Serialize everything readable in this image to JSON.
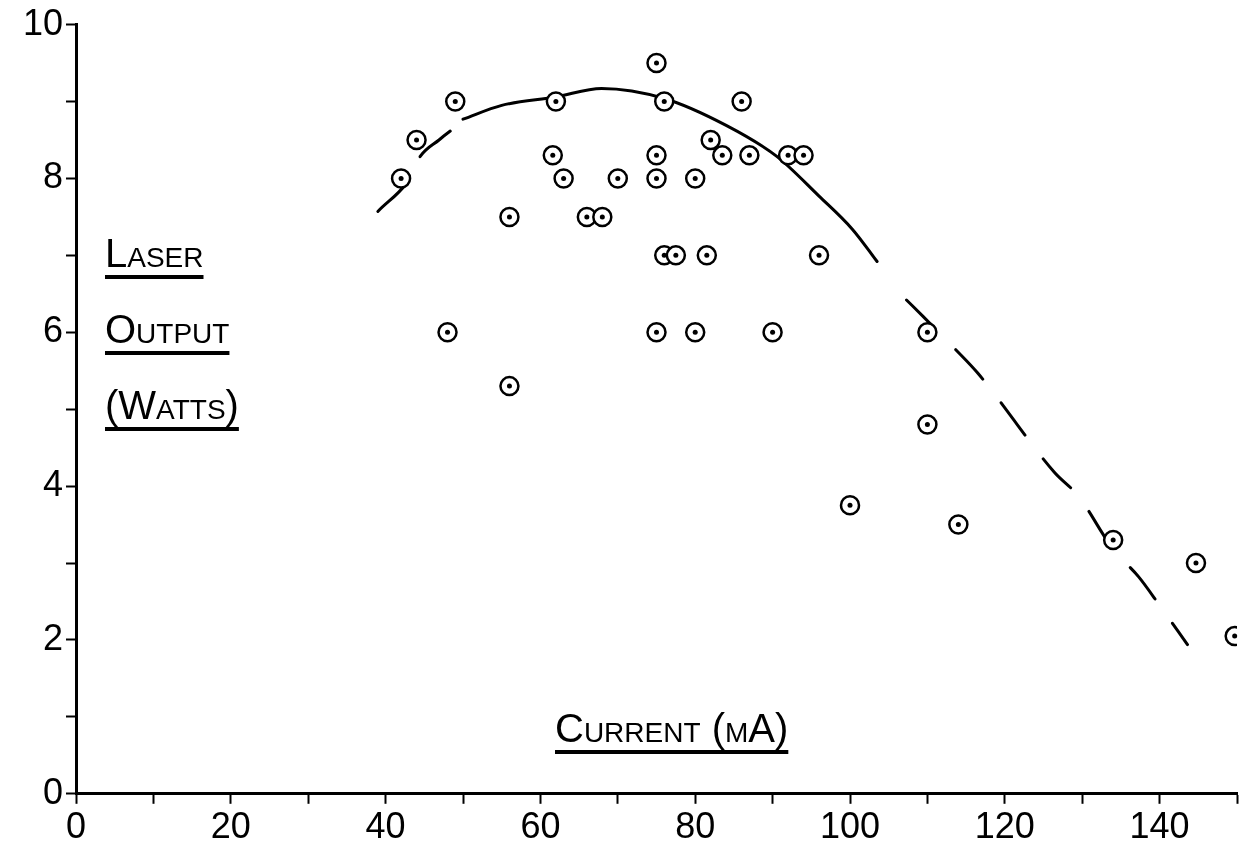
{
  "chart_data": {
    "type": "scatter",
    "xlabel": "Current (mA)",
    "ylabel": "Laser Output (Watts)",
    "xlim": [
      0,
      150
    ],
    "ylim": [
      0,
      10
    ],
    "xticks": [
      0,
      {
        "value": 10,
        "label": null
      },
      20,
      {
        "value": 30,
        "label": null
      },
      40,
      {
        "value": 50,
        "label": null
      },
      60,
      {
        "value": 70,
        "label": null
      },
      80,
      {
        "value": 90,
        "label": null
      },
      100,
      {
        "value": 110,
        "label": null
      },
      120,
      {
        "value": 130,
        "label": null
      },
      140,
      {
        "value": 150,
        "label": null
      }
    ],
    "yticks": [
      0,
      {
        "value": 1,
        "label": null
      },
      2,
      {
        "value": 3,
        "label": null
      },
      4,
      {
        "value": 5,
        "label": null
      },
      6,
      {
        "value": 7,
        "label": null
      },
      8,
      {
        "value": 9,
        "label": null
      },
      10
    ],
    "grid": false,
    "legend": false,
    "marker": "circle",
    "series": [
      {
        "color": "#000000",
        "x": [
          42,
          44,
          49,
          48,
          56,
          56,
          62,
          61.6,
          63,
          66,
          68,
          70,
          75,
          75,
          75,
          75,
          76,
          77.5,
          76,
          80,
          80,
          81.5,
          82,
          83.5,
          86,
          87,
          90,
          92,
          94,
          96,
          110,
          110,
          100,
          114,
          134,
          144.7,
          149.7
        ],
        "values": [
          8.0,
          8.5,
          9.0,
          6.0,
          7.5,
          5.3,
          9.0,
          8.3,
          8.0,
          7.5,
          7.5,
          8.0,
          9.5,
          8.3,
          8.0,
          6.0,
          7.0,
          7.0,
          9.0,
          8.0,
          6.0,
          7.0,
          8.5,
          8.3,
          9.0,
          8.3,
          6.0,
          8.3,
          8.3,
          7.0,
          6.0,
          4.8,
          3.75,
          3.5,
          3.3,
          3.0,
          2.05
        ]
      },
      {
        "type": "line",
        "color": "#000000",
        "line_style": "dashed",
        "marker": "none",
        "x": [
          39,
          43.3,
          44.3,
          46.9,
          50
        ],
        "values": [
          7.57,
          8.03,
          8.26,
          8.5,
          8.74
        ]
      },
      {
        "type": "line",
        "color": "#000000",
        "line_style": "solid",
        "marker": "none",
        "x": [
          50,
          55,
          62,
          67.9,
          76,
          84,
          90.5,
          96,
          100.3,
          103.5
        ],
        "values": [
          8.77,
          8.95,
          9.06,
          9.17,
          9.04,
          8.69,
          8.29,
          7.77,
          7.34,
          6.92
        ]
      },
      {
        "type": "line",
        "color": "#000000",
        "line_style": "dashed",
        "marker": "none",
        "x": [
          107.3,
          109.5,
          113.7,
          116.5,
          126.4,
          129.5,
          134,
          137.3,
          140,
          143.6
        ],
        "values": [
          6.42,
          6.2,
          5.77,
          5.47,
          4.18,
          3.87,
          3.18,
          2.82,
          2.45,
          1.94
        ]
      }
    ]
  }
}
